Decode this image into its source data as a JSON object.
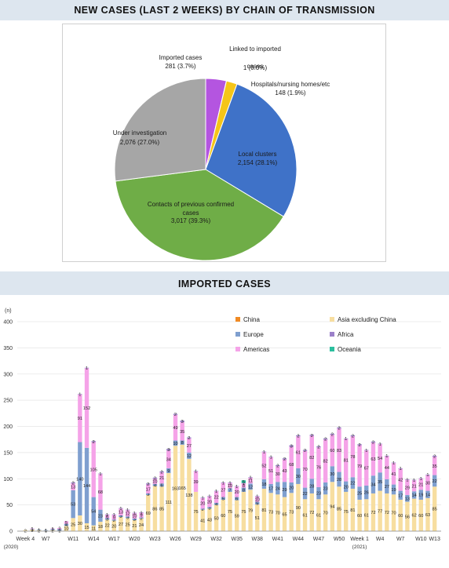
{
  "pie_title": "NEW CASES (LAST 2 WEEKS) BY CHAIN OF TRANSMISSION",
  "bar_title": "IMPORTED CASES",
  "chart_data": [
    {
      "type": "pie",
      "title": "NEW CASES (LAST 2 WEEKS) BY CHAIN OF TRANSMISSION",
      "slices": [
        {
          "name": "Imported cases",
          "value": 281,
          "label": "281 (3.7%)",
          "color": "#b455e0"
        },
        {
          "name": "Linked to imported cases",
          "value": 1,
          "label": "1 (0.0%)",
          "color": "#ff9e2c"
        },
        {
          "name": "Hospitals/nursing homes/etc",
          "value": 148,
          "label": "148 (1.9%)",
          "color": "#f5c518"
        },
        {
          "name": "Local clusters",
          "value": 2154,
          "label": "2,154 (28.1%)",
          "color": "#3f72c8"
        },
        {
          "name": "Contacts of previous confirmed cases",
          "value": 3017,
          "label": "3,017 (39.3%)",
          "color": "#6fad47"
        },
        {
          "name": "Under investigation",
          "value": 2076,
          "label": "2,076 (27.0%)",
          "color": "#a6a6a6"
        }
      ]
    },
    {
      "type": "bar",
      "stacked": true,
      "title": "IMPORTED CASES",
      "ylabel": "(n)",
      "ylim": [
        0,
        400
      ],
      "yticks": [
        "0",
        "50",
        "100",
        "150",
        "200",
        "250",
        "300",
        "350",
        "400"
      ],
      "legend": [
        "China",
        "Asia excluding China",
        "Europe",
        "Africa",
        "Americas",
        "Oceania"
      ],
      "colors": {
        "China": "#f08a24",
        "Asia excluding China": "#f7dea0",
        "Europe": "#7f9fcf",
        "Africa": "#9b80c9",
        "Americas": "#f5a3e8",
        "Oceania": "#2bbf9e"
      },
      "x_labels": [
        "Week 4",
        "W7",
        "W11",
        "W14",
        "W17",
        "W20",
        "W23",
        "W26",
        "W29",
        "W32",
        "W35",
        "W38",
        "W41",
        "W44",
        "W47",
        "W50",
        "Week 1",
        "W4",
        "W7",
        "W10",
        "W13"
      ],
      "year_labels": [
        "(2020)",
        "(2021)"
      ],
      "series": [
        {
          "name": "Asia excluding China",
          "values": [
            2,
            3,
            2,
            1,
            2,
            1,
            10,
            25,
            30,
            15,
            11,
            18,
            22,
            20,
            27,
            25,
            21,
            24,
            69,
            86,
            85,
            111,
            163,
            165,
            138,
            75,
            41,
            43,
            50,
            60,
            75,
            59,
            75,
            79,
            51,
            81,
            73,
            70,
            65,
            73,
            90,
            61,
            72,
            61,
            70,
            94,
            85,
            75,
            81,
            60,
            61,
            72,
            77,
            72,
            70,
            60,
            56,
            62,
            60,
            63,
            85
          ]
        },
        {
          "name": "Europe",
          "values": [
            0,
            1,
            1,
            1,
            2,
            3,
            4,
            53,
            140,
            144,
            54,
            23,
            3,
            2,
            3,
            3,
            3,
            2,
            3,
            4,
            6,
            9,
            10,
            8,
            12,
            0,
            2,
            3,
            4,
            5,
            7,
            6,
            8,
            12,
            5,
            18,
            17,
            24,
            29,
            20,
            30,
            22,
            28,
            23,
            23,
            30,
            28,
            20,
            22,
            25,
            26,
            34,
            35,
            27,
            19,
            17,
            13,
            14,
            19,
            14,
            22
          ]
        },
        {
          "name": "Americas",
          "values": [
            0,
            1,
            0,
            0,
            1,
            2,
            5,
            13,
            91,
            152,
            105,
            68,
            6,
            9,
            13,
            12,
            10,
            9,
            17,
            10,
            21,
            34,
            49,
            35,
            27,
            39,
            20,
            20,
            22,
            27,
            10,
            20,
            8,
            11,
            10,
            52,
            51,
            30,
            43,
            68,
            61,
            70,
            82,
            76,
            82,
            60,
            83,
            81,
            78,
            79,
            67,
            63,
            54,
            44,
            41,
            42,
            29,
            21,
            21,
            30,
            35
          ]
        },
        {
          "name": "Africa",
          "values": [
            0,
            0,
            0,
            0,
            0,
            0,
            0,
            2,
            1,
            1,
            2,
            1,
            1,
            1,
            1,
            1,
            1,
            1,
            2,
            2,
            2,
            3,
            2,
            3,
            2,
            1,
            1,
            1,
            1,
            1,
            1,
            1,
            1,
            1,
            1,
            1,
            1,
            2,
            2,
            3,
            2,
            2,
            2,
            2,
            2,
            2,
            2,
            1,
            2,
            2,
            1,
            2,
            1,
            1,
            1,
            1,
            1,
            1,
            1,
            1,
            2
          ]
        },
        {
          "name": "China",
          "values": [
            0,
            0,
            0,
            0,
            0,
            0,
            0,
            0,
            0,
            0,
            0,
            0,
            0,
            0,
            0,
            0,
            0,
            0,
            0,
            0,
            0,
            0,
            0,
            0,
            0,
            0,
            0,
            0,
            0,
            0,
            0,
            0,
            0,
            0,
            0,
            0,
            0,
            0,
            0,
            0,
            0,
            0,
            0,
            0,
            0,
            0,
            0,
            0,
            0,
            0,
            0,
            0,
            0,
            0,
            0,
            0,
            0,
            0,
            0,
            0,
            0
          ]
        },
        {
          "name": "Oceania",
          "values": [
            0,
            0,
            0,
            0,
            0,
            0,
            0,
            0,
            0,
            0,
            0,
            0,
            0,
            0,
            0,
            0,
            0,
            0,
            0,
            0,
            0,
            0,
            0,
            0,
            0,
            0,
            0,
            0,
            0,
            0,
            0,
            0,
            5,
            0,
            0,
            0,
            0,
            0,
            0,
            0,
            0,
            0,
            0,
            0,
            0,
            0,
            0,
            0,
            0,
            0,
            0,
            0,
            0,
            0,
            0,
            0,
            0,
            0,
            0,
            0,
            0
          ]
        }
      ]
    }
  ]
}
